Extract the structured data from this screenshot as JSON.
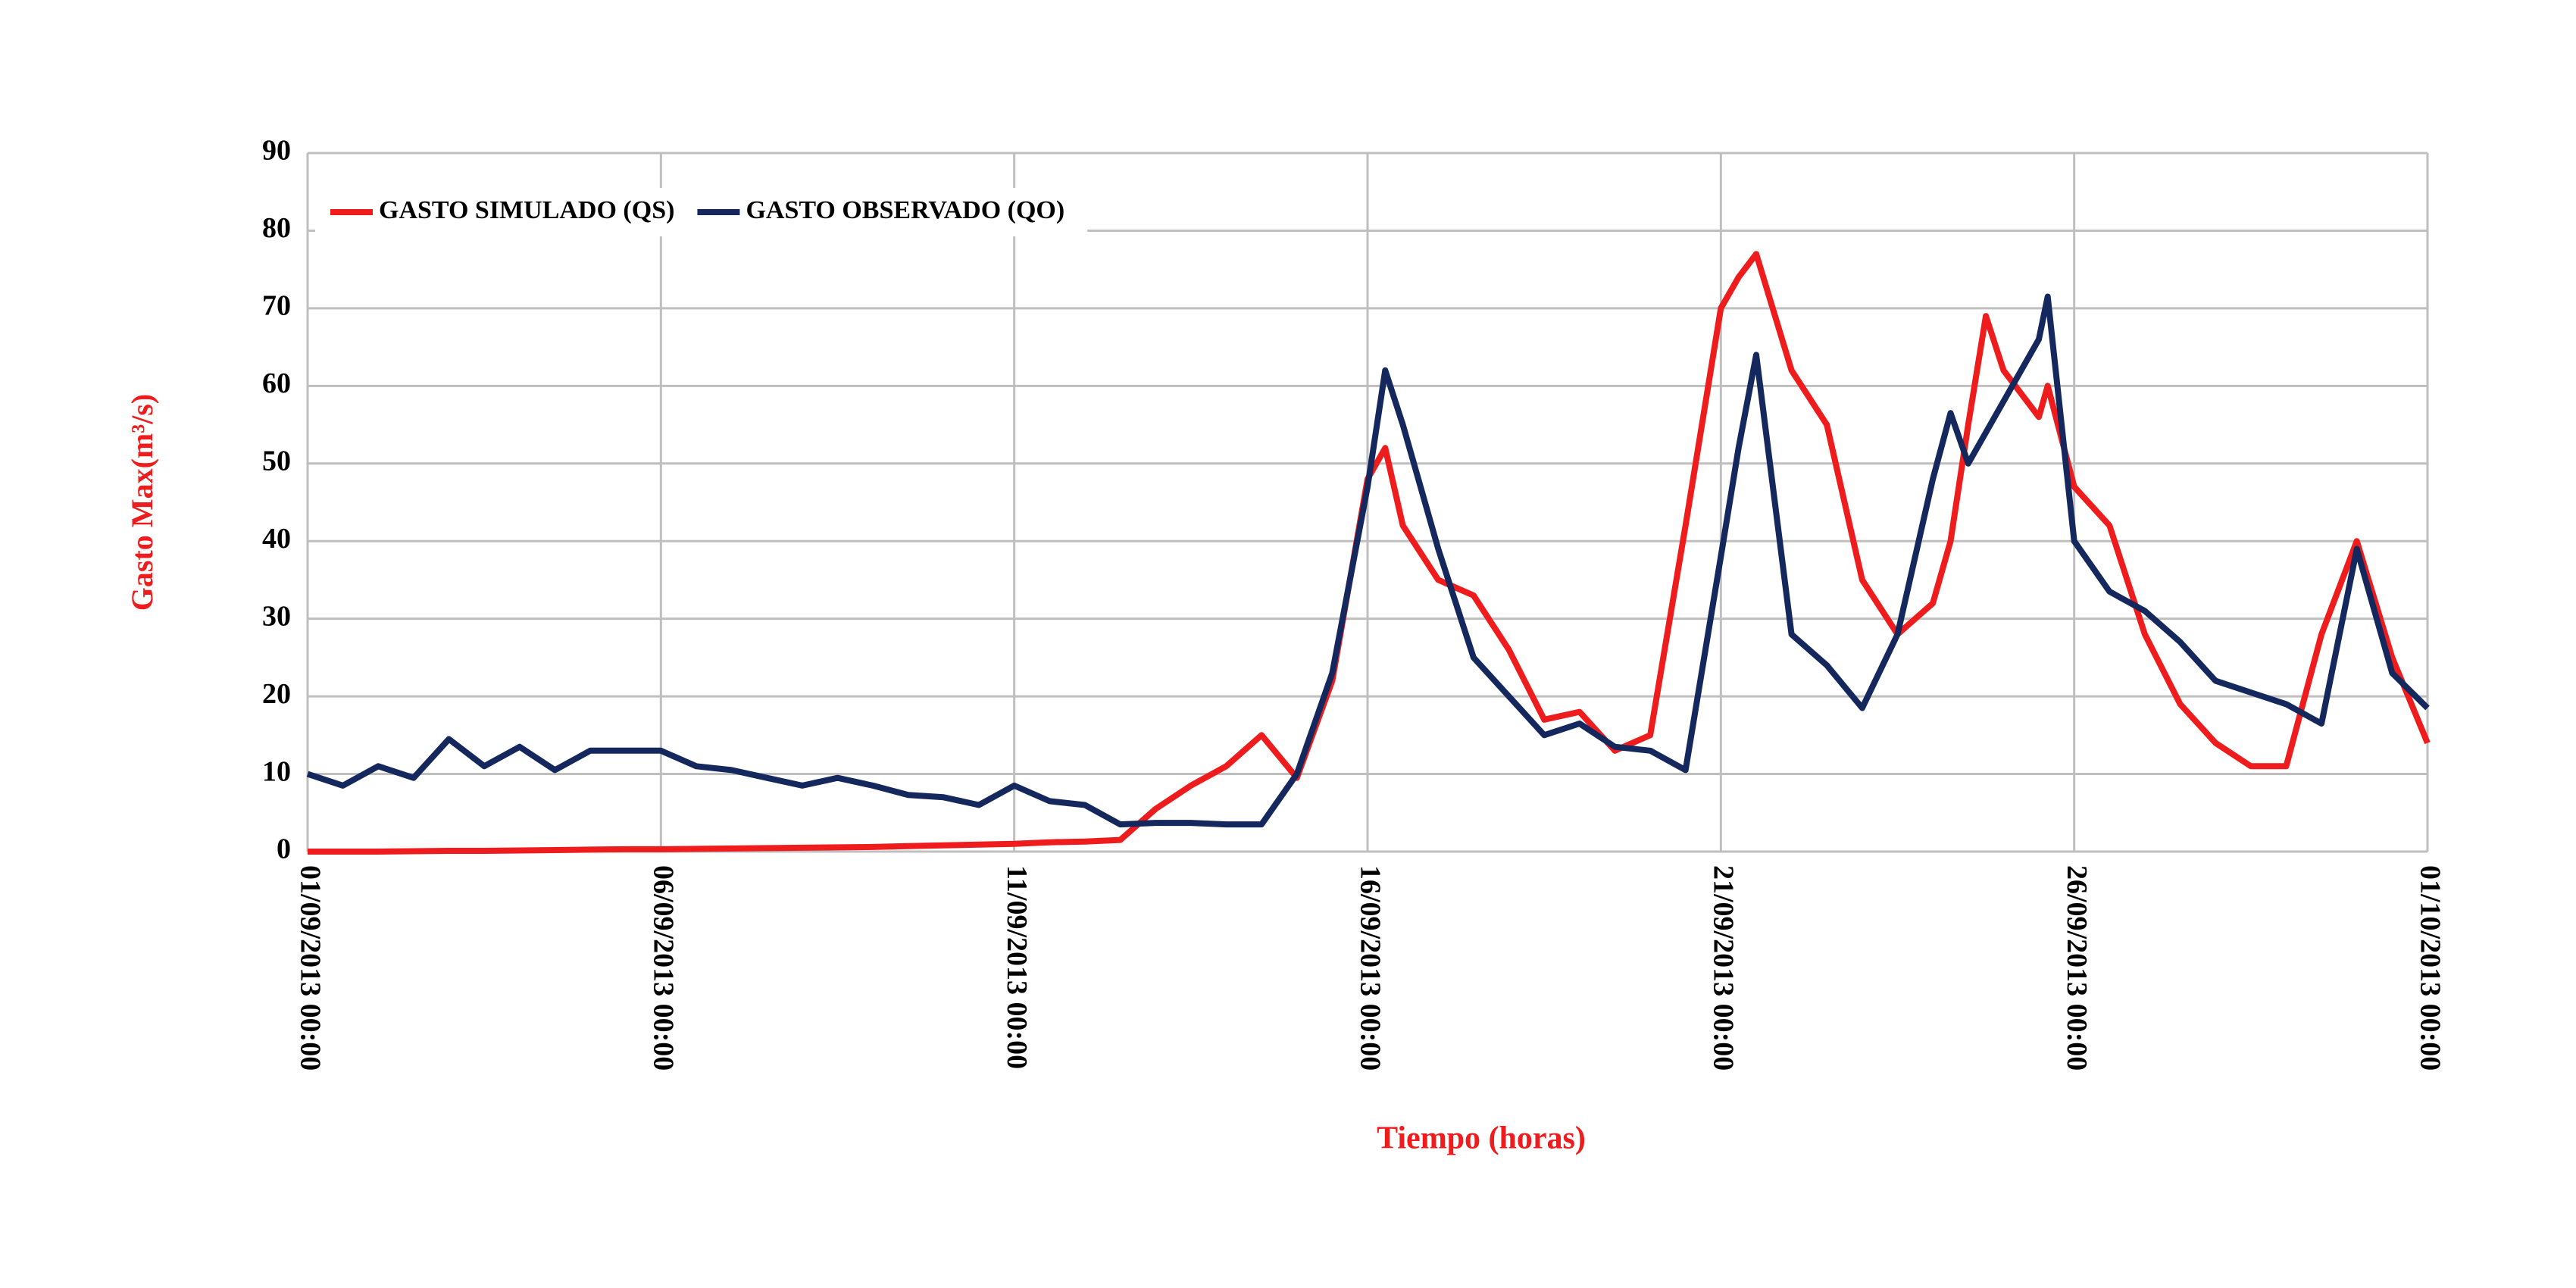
{
  "chart_data": {
    "type": "line",
    "xlabel": "Tiempo (horas)",
    "ylabel": "Gasto Max(m³/s)",
    "x": [
      "2013-09-01T00:00",
      "2013-09-01T12:00",
      "2013-09-02T00:00",
      "2013-09-02T12:00",
      "2013-09-03T00:00",
      "2013-09-03T12:00",
      "2013-09-04T00:00",
      "2013-09-04T12:00",
      "2013-09-05T00:00",
      "2013-09-05T12:00",
      "2013-09-06T00:00",
      "2013-09-06T12:00",
      "2013-09-07T00:00",
      "2013-09-07T12:00",
      "2013-09-08T00:00",
      "2013-09-08T12:00",
      "2013-09-09T00:00",
      "2013-09-09T12:00",
      "2013-09-10T00:00",
      "2013-09-10T12:00",
      "2013-09-11T00:00",
      "2013-09-11T12:00",
      "2013-09-12T00:00",
      "2013-09-12T12:00",
      "2013-09-13T00:00",
      "2013-09-13T12:00",
      "2013-09-14T00:00",
      "2013-09-14T12:00",
      "2013-09-15T00:00",
      "2013-09-15T12:00",
      "2013-09-16T00:00",
      "2013-09-16T06:00",
      "2013-09-16T12:00",
      "2013-09-17T00:00",
      "2013-09-17T12:00",
      "2013-09-18T00:00",
      "2013-09-18T12:00",
      "2013-09-19T00:00",
      "2013-09-19T12:00",
      "2013-09-20T00:00",
      "2013-09-20T12:00",
      "2013-09-21T00:00",
      "2013-09-21T06:00",
      "2013-09-21T12:00",
      "2013-09-22T00:00",
      "2013-09-22T12:00",
      "2013-09-23T00:00",
      "2013-09-23T12:00",
      "2013-09-24T00:00",
      "2013-09-24T06:00",
      "2013-09-24T12:00",
      "2013-09-24T18:00",
      "2013-09-25T00:00",
      "2013-09-25T12:00",
      "2013-09-25T15:00",
      "2013-09-26T00:00",
      "2013-09-26T12:00",
      "2013-09-27T00:00",
      "2013-09-27T12:00",
      "2013-09-28T00:00",
      "2013-09-28T12:00",
      "2013-09-29T00:00",
      "2013-09-29T12:00",
      "2013-09-30T00:00",
      "2013-09-30T12:00",
      "2013-10-01T00:00"
    ],
    "series": [
      {
        "name": "GASTO SIMULADO (QS)",
        "color": "#ee1c1c",
        "values": [
          0,
          0,
          0,
          0.05,
          0.1,
          0.1,
          0.15,
          0.2,
          0.25,
          0.3,
          0.3,
          0.35,
          0.4,
          0.45,
          0.5,
          0.55,
          0.6,
          0.7,
          0.8,
          0.9,
          1,
          1.2,
          1.3,
          1.5,
          5.5,
          8.5,
          11,
          15,
          9.5,
          22,
          48,
          52,
          42,
          35,
          33,
          26,
          17,
          18,
          13,
          15,
          42,
          70,
          74,
          77,
          62,
          55,
          35,
          28,
          32,
          40,
          55,
          69,
          62,
          56,
          60,
          47,
          42,
          28,
          19,
          14,
          11,
          11,
          28,
          40,
          25,
          14
        ]
      },
      {
        "name": "GASTO OBSERVADO (QO)",
        "color": "#14285e",
        "values": [
          10,
          8.5,
          11,
          9.5,
          14.5,
          11,
          13.5,
          10.5,
          13,
          13,
          13,
          11,
          10.5,
          9.5,
          8.5,
          9.5,
          8.5,
          7.3,
          7,
          6,
          8.5,
          6.5,
          6,
          3.5,
          3.7,
          3.7,
          3.5,
          3.5,
          10,
          23,
          47,
          62,
          55,
          39,
          25,
          20,
          15,
          16.5,
          13.5,
          13,
          10.5,
          38,
          52,
          64,
          28,
          24,
          18.5,
          28,
          48,
          56.5,
          50,
          54,
          58,
          66,
          71.5,
          40,
          33.5,
          31,
          27,
          22,
          20.5,
          19,
          16.5,
          39,
          23,
          18.5
        ]
      }
    ],
    "xlim": [
      "2013-09-01T00:00",
      "2013-10-01T00:00"
    ],
    "xticks": [
      {
        "value": "2013-09-01T00:00",
        "label": "01/09/2013 00:00"
      },
      {
        "value": "2013-09-06T00:00",
        "label": "06/09/2013 00:00"
      },
      {
        "value": "2013-09-11T00:00",
        "label": "11/09/2013 00:00"
      },
      {
        "value": "2013-09-16T00:00",
        "label": "16/09/2013 00:00"
      },
      {
        "value": "2013-09-21T00:00",
        "label": "21/09/2013 00:00"
      },
      {
        "value": "2013-09-26T00:00",
        "label": "26/09/2013 00:00"
      },
      {
        "value": "2013-10-01T00:00",
        "label": "01/10/2013 00:00"
      }
    ],
    "ylim": [
      0,
      90
    ],
    "yticks": [
      0,
      10,
      20,
      30,
      40,
      50,
      60,
      70,
      80,
      90
    ],
    "grid": true,
    "legend": "top-left"
  }
}
